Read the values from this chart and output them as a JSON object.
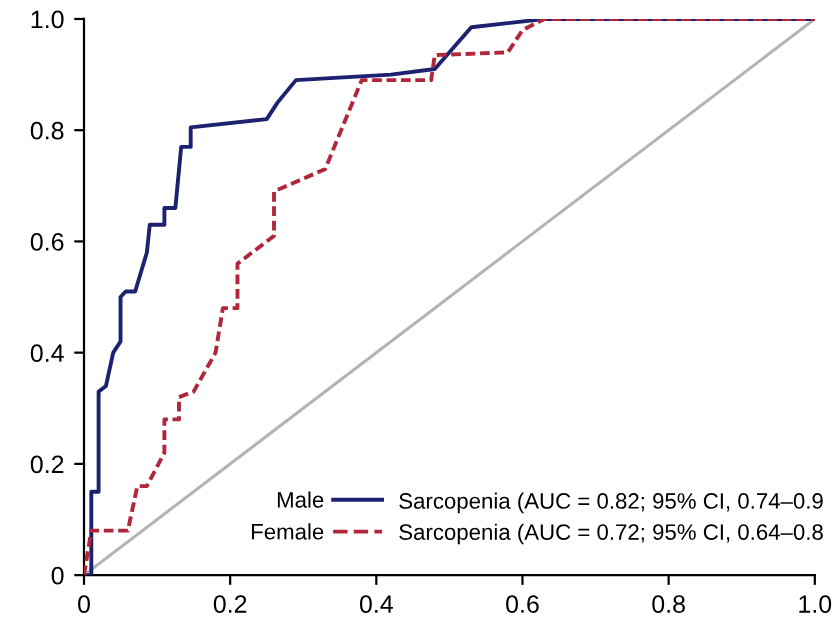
{
  "chart_data": {
    "type": "line",
    "xlim": [
      0,
      1.0
    ],
    "ylim": [
      0,
      1.0
    ],
    "xticks": [
      0,
      0.2,
      0.4,
      0.6,
      0.8,
      {
        "value": 1,
        "label": "1.0"
      }
    ],
    "yticks": [
      0,
      0.2,
      0.4,
      0.6,
      0.8,
      {
        "value": 1,
        "label": "1.0"
      }
    ],
    "grid": false,
    "legend": "bottom",
    "marker": "none",
    "series": [
      {
        "name": "Male",
        "color": "#1c2270",
        "line_style": "solid",
        "x": [
          0,
          0.01,
          0.01,
          0.02,
          0.02,
          0.03,
          0.04,
          0.05,
          0.05,
          0.057,
          0.07,
          0.086,
          0.09,
          0.11,
          0.11,
          0.125,
          0.133,
          0.146,
          0.146,
          0.25,
          0.265,
          0.29,
          0.42,
          0.48,
          0.53,
          0.63,
          1.0
        ],
        "values": [
          0,
          0,
          0.15,
          0.15,
          0.33,
          0.34,
          0.4,
          0.42,
          0.5,
          0.51,
          0.51,
          0.58,
          0.63,
          0.63,
          0.66,
          0.66,
          0.77,
          0.77,
          0.805,
          0.82,
          0.85,
          0.89,
          0.9,
          0.91,
          0.985,
          1.0,
          1.0
        ]
      },
      {
        "name": "Female",
        "color": "#b0263a",
        "line_style": "dashed",
        "x": [
          0,
          0.01,
          0.06,
          0.073,
          0.086,
          0.11,
          0.11,
          0.13,
          0.13,
          0.15,
          0.18,
          0.19,
          0.21,
          0.21,
          0.26,
          0.26,
          0.33,
          0.38,
          0.475,
          0.48,
          0.58,
          0.6,
          0.63,
          1.0
        ],
        "values": [
          0,
          0.08,
          0.08,
          0.16,
          0.16,
          0.22,
          0.28,
          0.28,
          0.32,
          0.33,
          0.4,
          0.48,
          0.48,
          0.56,
          0.61,
          0.69,
          0.73,
          0.89,
          0.89,
          0.935,
          0.94,
          0.98,
          1.0,
          1.0
        ]
      },
      {
        "color": "#b4b4b4",
        "line_style": "solid",
        "x": [
          0,
          1.0
        ],
        "values": [
          0,
          1.0
        ]
      }
    ],
    "annotations": [
      "Sarcopenia (AUC = 0.82; 95% CI, 0.74–0.9",
      "Sarcopenia (AUC = 0.72; 95% CI, 0.64–0.8"
    ]
  }
}
